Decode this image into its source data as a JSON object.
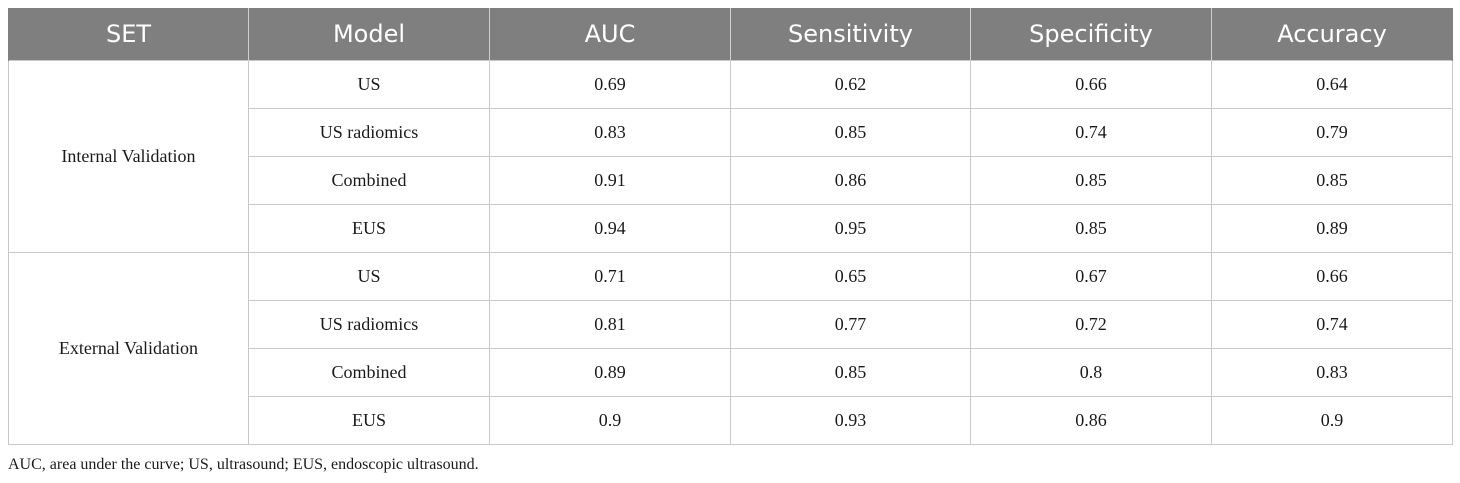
{
  "table": {
    "headers": [
      "SET",
      "Model",
      "AUC",
      "Sensitivity",
      "Specificity",
      "Accuracy"
    ],
    "groups": [
      {
        "set": "Internal Validation",
        "rows": [
          {
            "model": "US",
            "auc": "0.69",
            "sensitivity": "0.62",
            "specificity": "0.66",
            "accuracy": "0.64"
          },
          {
            "model": "US radiomics",
            "auc": "0.83",
            "sensitivity": "0.85",
            "specificity": "0.74",
            "accuracy": "0.79"
          },
          {
            "model": "Combined",
            "auc": "0.91",
            "sensitivity": "0.86",
            "specificity": "0.85",
            "accuracy": "0.85"
          },
          {
            "model": "EUS",
            "auc": "0.94",
            "sensitivity": "0.95",
            "specificity": "0.85",
            "accuracy": "0.89"
          }
        ]
      },
      {
        "set": "External Validation",
        "rows": [
          {
            "model": "US",
            "auc": "0.71",
            "sensitivity": "0.65",
            "specificity": "0.67",
            "accuracy": "0.66"
          },
          {
            "model": "US radiomics",
            "auc": "0.81",
            "sensitivity": "0.77",
            "specificity": "0.72",
            "accuracy": "0.74"
          },
          {
            "model": "Combined",
            "auc": "0.89",
            "sensitivity": "0.85",
            "specificity": "0.8",
            "accuracy": "0.83"
          },
          {
            "model": "EUS",
            "auc": "0.9",
            "sensitivity": "0.93",
            "specificity": "0.86",
            "accuracy": "0.9"
          }
        ]
      }
    ]
  },
  "footnote": "AUC, area under the curve; US, ultrasound; EUS, endoscopic ultrasound.",
  "colors": {
    "header_bg": "#7f7f7f",
    "header_text": "#ffffff",
    "grid": "#c8c8c8"
  }
}
